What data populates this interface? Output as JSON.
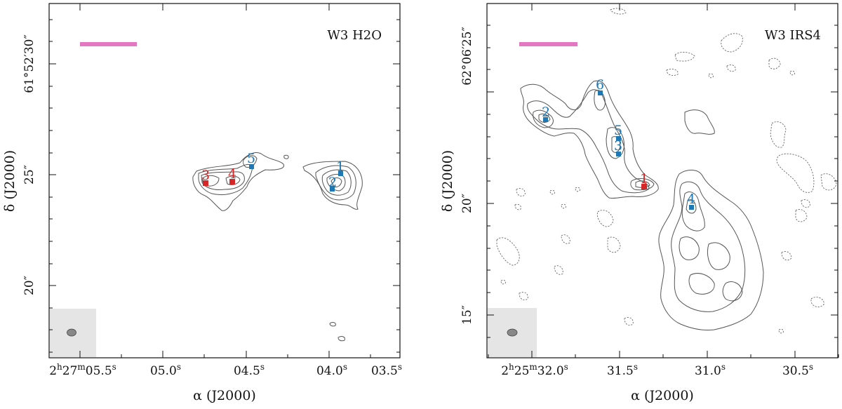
{
  "chart_data": [
    {
      "type": "scatter",
      "title": "W3 H2O",
      "title_position": "top-right",
      "xlabel": "α (J2000)",
      "ylabel": "δ (J2000)",
      "x_tick_labels": [
        "2h27m05.5s",
        "05.0s",
        "04.5s",
        "04.0s",
        "03.5s"
      ],
      "x_ticks": [
        {
          "main": "2",
          "sup1": "h",
          "mid": "27",
          "sup2": "m",
          "num": "05.5",
          "sup3": "s"
        },
        {
          "num": "05.0",
          "sup3": "s"
        },
        {
          "num": "04.5",
          "sup3": "s"
        },
        {
          "num": "04.0",
          "sup3": "s"
        },
        {
          "num": "03.5",
          "sup3": "s"
        }
      ],
      "y_tick_labels": [
        "61°52′30″",
        "25″",
        "20″"
      ],
      "sources": [
        {
          "id": "1",
          "color": "#1f77b4"
        },
        {
          "id": "2",
          "color": "#1f77b4"
        },
        {
          "id": "3",
          "color": "#d62728"
        },
        {
          "id": "4",
          "color": "#d62728"
        },
        {
          "id": "5",
          "color": "#1f77b4"
        }
      ],
      "scale_bar_color": "#e377c2",
      "beam_box_color": "#e5e5e5"
    },
    {
      "type": "scatter",
      "title": "W3 IRS4",
      "title_position": "top-right",
      "xlabel": "α (J2000)",
      "ylabel": "δ (J2000)",
      "x_tick_labels": [
        "2h25m32.0s",
        "31.5s",
        "31.0s",
        "30.5s"
      ],
      "x_ticks": [
        {
          "main": "2",
          "sup1": "h",
          "mid": "25",
          "sup2": "m",
          "num": "32.0",
          "sup3": "s"
        },
        {
          "num": "31.5",
          "sup3": "s"
        },
        {
          "num": "31.0",
          "sup3": "s"
        },
        {
          "num": "30.5",
          "sup3": "s"
        }
      ],
      "y_tick_labels": [
        "62°06′25″",
        "20″",
        "15″"
      ],
      "sources": [
        {
          "id": "1",
          "color": "#d62728"
        },
        {
          "id": "2",
          "color": "#1f77b4"
        },
        {
          "id": "3",
          "color": "#1f77b4"
        },
        {
          "id": "4",
          "color": "#1f77b4"
        },
        {
          "id": "5",
          "color": "#1f77b4"
        },
        {
          "id": "6",
          "color": "#1f77b4"
        }
      ],
      "scale_bar_color": "#e377c2",
      "beam_box_color": "#e5e5e5"
    }
  ]
}
